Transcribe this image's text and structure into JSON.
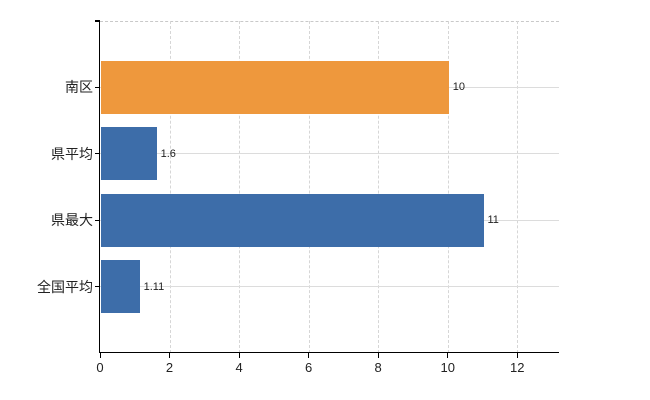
{
  "chart_data": {
    "type": "bar",
    "orientation": "horizontal",
    "title": "",
    "xlabel": "",
    "ylabel": "",
    "categories": [
      "南区",
      "県平均",
      "県最大",
      "全国平均"
    ],
    "values": [
      10,
      1.6,
      11,
      1.11
    ],
    "value_labels": [
      "10",
      "1.6",
      "11",
      "1.11"
    ],
    "bar_colors": [
      "#EE983D",
      "#3D6DA9",
      "#3D6DA9",
      "#3D6DA9"
    ],
    "x_ticks": [
      0,
      2,
      4,
      6,
      8,
      10,
      12
    ],
    "x_tick_labels": [
      "0",
      "2",
      "4",
      "6",
      "8",
      "10",
      "12"
    ],
    "xlim": [
      0,
      13.2
    ],
    "legend": "none",
    "grid": {
      "horizontal_style": "solid",
      "vertical_style": "dashed",
      "color": "#dcdcdc",
      "top_border_style": "dashed"
    },
    "colors": {
      "axis": "#000000",
      "text": "#222222",
      "background": "#ffffff"
    }
  }
}
